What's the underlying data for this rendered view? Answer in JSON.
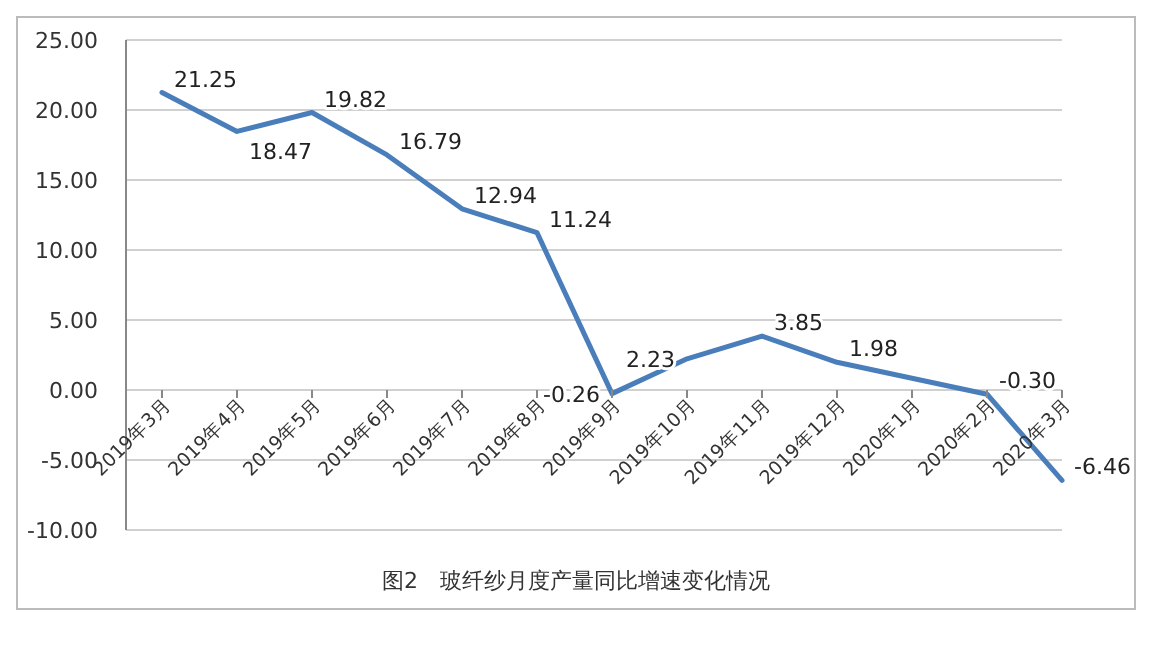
{
  "chart_data": {
    "type": "line",
    "title": "图2　玻纤纱月度产量同比增速变化情况",
    "categories": [
      "2019年3月",
      "2019年4月",
      "2019年5月",
      "2019年6月",
      "2019年7月",
      "2019年8月",
      "2019年9月",
      "2019年10月",
      "2019年11月",
      "2019年12月",
      "2020年1月",
      "2020年2月",
      "2020年3月"
    ],
    "series": [
      {
        "color": "#4a7ebb",
        "values": [
          21.25,
          18.47,
          19.82,
          16.79,
          12.94,
          11.24,
          -0.26,
          2.23,
          3.85,
          1.98,
          null,
          -0.3,
          -6.46
        ],
        "value_labels": [
          "21.25",
          "18.47",
          "19.82",
          "16.79",
          "12.94",
          "11.24",
          "-0.26",
          "2.23",
          "3.85",
          "1.98",
          null,
          "-0.30",
          "-6.46"
        ]
      }
    ],
    "ylim": [
      -10,
      25
    ],
    "yticks": [
      {
        "value": -10,
        "label": "-10.00"
      },
      {
        "value": -5,
        "label": "-5.00"
      },
      {
        "value": 0,
        "label": "0.00"
      },
      {
        "value": 5,
        "label": "5.00"
      },
      {
        "value": 10,
        "label": "10.00"
      },
      {
        "value": 15,
        "label": "15.00"
      },
      {
        "value": 20,
        "label": "20.00"
      },
      {
        "value": 25,
        "label": "25.00"
      }
    ],
    "grid": "y",
    "marker": "none",
    "line_style": "solid"
  }
}
